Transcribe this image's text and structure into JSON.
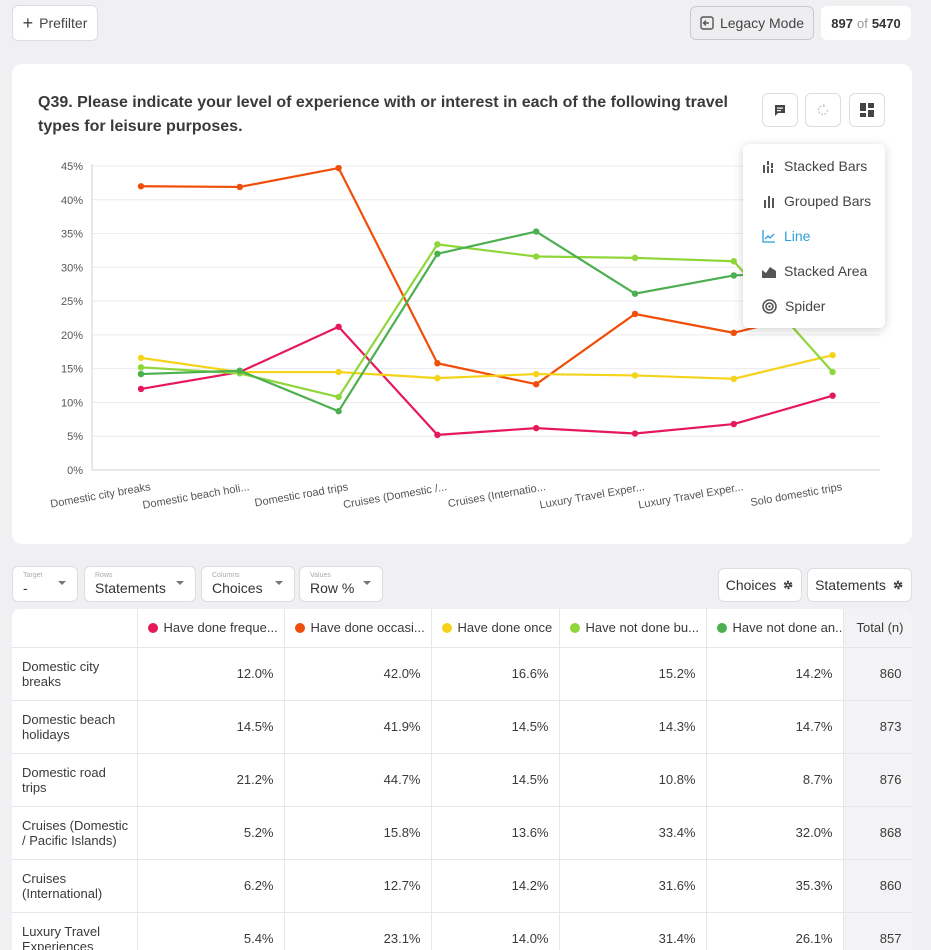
{
  "topbar": {
    "prefilter_label": "Prefilter",
    "legacy_label": "Legacy Mode",
    "count_value": "897",
    "count_of": "of",
    "count_total": "5470"
  },
  "question": {
    "title": "Q39. Please indicate your level of experience with or interest in each of the following travel types for leisure purposes."
  },
  "chart_menu": {
    "items": [
      {
        "label": "Stacked Bars",
        "icon": "stacked-bars-icon"
      },
      {
        "label": "Grouped Bars",
        "icon": "grouped-bars-icon"
      },
      {
        "label": "Line",
        "icon": "line-chart-icon",
        "active": true
      },
      {
        "label": "Stacked Area",
        "icon": "stacked-area-icon"
      },
      {
        "label": "Spider",
        "icon": "spider-icon"
      }
    ]
  },
  "chart_data": {
    "type": "line",
    "title": "",
    "xlabel": "",
    "ylabel": "",
    "ylim": [
      0,
      45
    ],
    "yticks": [
      "0%",
      "5%",
      "10%",
      "15%",
      "20%",
      "25%",
      "30%",
      "35%",
      "40%",
      "45%"
    ],
    "categories": [
      "Domestic city breaks",
      "Domestic beach holi...",
      "Domestic road trips",
      "Cruises (Domestic /...",
      "Cruises (Internatio...",
      "Luxury Travel Exper...",
      "Luxury Travel Exper...",
      "Solo domestic trips"
    ],
    "grid": true,
    "series": [
      {
        "name": "Have done frequently",
        "color": "#e6195a",
        "values": [
          12.0,
          14.5,
          21.2,
          5.2,
          6.2,
          5.4,
          6.8,
          11.0
        ]
      },
      {
        "name": "Have done occasionally",
        "color": "#f04e0a",
        "values": [
          42.0,
          41.9,
          44.7,
          15.8,
          12.7,
          23.1,
          20.3,
          24.0
        ]
      },
      {
        "name": "Have done once",
        "color": "#f5d31a",
        "values": [
          16.6,
          14.5,
          14.5,
          13.6,
          14.2,
          14.0,
          13.5,
          17.0
        ]
      },
      {
        "name": "Have not done but interested",
        "color": "#8fd63a",
        "values": [
          15.2,
          14.3,
          10.8,
          33.4,
          31.6,
          31.4,
          30.9,
          14.5
        ]
      },
      {
        "name": "Have not done and not interested",
        "color": "#4caf50",
        "values": [
          14.2,
          14.7,
          8.7,
          32.0,
          35.3,
          26.1,
          28.8,
          29.5
        ]
      }
    ]
  },
  "controls": {
    "target": {
      "label": "Target",
      "value": "-"
    },
    "rows": {
      "label": "Rows",
      "value": "Statements"
    },
    "columns": {
      "label": "Columns",
      "value": "Choices"
    },
    "values": {
      "label": "Values",
      "value": "Row %"
    },
    "choices_button": "Choices",
    "statements_button": "Statements"
  },
  "table": {
    "headers": [
      "Have done freque...",
      "Have done occasi...",
      "Have done once",
      "Have not done bu...",
      "Have not done an...",
      "Total (n)"
    ],
    "header_colors": [
      "#e6195a",
      "#f04e0a",
      "#f5d31a",
      "#8fd63a",
      "#4caf50"
    ],
    "rows": [
      {
        "label": "Domestic city breaks",
        "cells": [
          "12.0%",
          "42.0%",
          "16.6%",
          "15.2%",
          "14.2%"
        ],
        "total": "860"
      },
      {
        "label": "Domestic beach holidays",
        "cells": [
          "14.5%",
          "41.9%",
          "14.5%",
          "14.3%",
          "14.7%"
        ],
        "total": "873"
      },
      {
        "label": "Domestic road trips",
        "cells": [
          "21.2%",
          "44.7%",
          "14.5%",
          "10.8%",
          "8.7%"
        ],
        "total": "876"
      },
      {
        "label": "Cruises (Domestic / Pacific Islands)",
        "cells": [
          "5.2%",
          "15.8%",
          "13.6%",
          "33.4%",
          "32.0%"
        ],
        "total": "868"
      },
      {
        "label": "Cruises (International)",
        "cells": [
          "6.2%",
          "12.7%",
          "14.2%",
          "31.6%",
          "35.3%"
        ],
        "total": "860"
      },
      {
        "label": "Luxury Travel Experiences",
        "cells": [
          "5.4%",
          "23.1%",
          "14.0%",
          "31.4%",
          "26.1%"
        ],
        "total": "857"
      }
    ]
  }
}
